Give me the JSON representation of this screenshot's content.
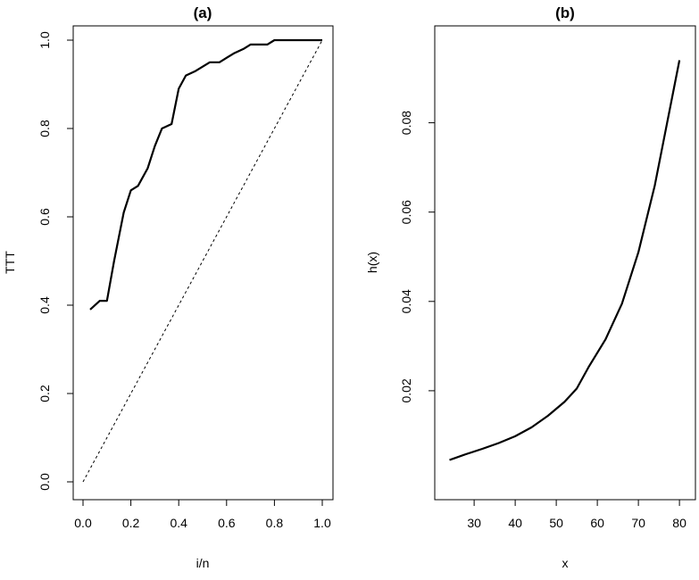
{
  "chart_data": [
    {
      "type": "line",
      "title": "(a)",
      "xlabel": "i/n",
      "ylabel": "TTT",
      "xlim": [
        0,
        1
      ],
      "ylim": [
        0,
        1
      ],
      "x_ticks": [
        0.0,
        0.2,
        0.4,
        0.6,
        0.8,
        1.0
      ],
      "x_tick_labels": [
        "0.0",
        "0.2",
        "0.4",
        "0.6",
        "0.8",
        "1.0"
      ],
      "y_ticks": [
        0.0,
        0.2,
        0.4,
        0.6,
        0.8,
        1.0
      ],
      "y_tick_labels": [
        "0.0",
        "0.2",
        "0.4",
        "0.6",
        "0.8",
        "1.0"
      ],
      "series": [
        {
          "name": "TTT",
          "style": "solid",
          "x": [
            0.03,
            0.07,
            0.1,
            0.13,
            0.17,
            0.2,
            0.23,
            0.27,
            0.3,
            0.33,
            0.37,
            0.4,
            0.43,
            0.47,
            0.5,
            0.53,
            0.57,
            0.6,
            0.63,
            0.67,
            0.7,
            0.73,
            0.77,
            0.8,
            0.83,
            0.87,
            0.9,
            0.93,
            0.97,
            1.0
          ],
          "y": [
            0.39,
            0.41,
            0.41,
            0.5,
            0.61,
            0.66,
            0.67,
            0.71,
            0.76,
            0.8,
            0.81,
            0.89,
            0.92,
            0.93,
            0.94,
            0.95,
            0.95,
            0.96,
            0.97,
            0.98,
            0.99,
            0.99,
            0.99,
            1.0,
            1.0,
            1.0,
            1.0,
            1.0,
            1.0,
            1.0
          ]
        },
        {
          "name": "diagonal",
          "style": "dashed",
          "x": [
            0,
            1
          ],
          "y": [
            0,
            1
          ]
        }
      ]
    },
    {
      "type": "line",
      "title": "(b)",
      "xlabel": "x",
      "ylabel": "h(x)",
      "xlim": [
        22.8,
        81.5
      ],
      "ylim": [
        -0.0004,
        0.0985
      ],
      "x_ticks": [
        30,
        40,
        50,
        60,
        70,
        80
      ],
      "x_tick_labels": [
        "30",
        "40",
        "50",
        "60",
        "70",
        "80"
      ],
      "y_ticks": [
        0.02,
        0.04,
        0.06,
        0.08
      ],
      "y_tick_labels": [
        "0.02",
        "0.04",
        "0.06",
        "0.08"
      ],
      "series": [
        {
          "name": "h(x)",
          "style": "solid",
          "x": [
            24,
            28,
            32,
            36,
            40,
            44,
            48,
            52,
            55,
            58,
            62,
            66,
            70,
            74,
            77,
            80
          ],
          "y": [
            0.0045,
            0.0058,
            0.007,
            0.0083,
            0.0098,
            0.0118,
            0.0144,
            0.0175,
            0.0205,
            0.0255,
            0.0315,
            0.0395,
            0.051,
            0.066,
            0.08,
            0.094
          ]
        }
      ]
    }
  ]
}
